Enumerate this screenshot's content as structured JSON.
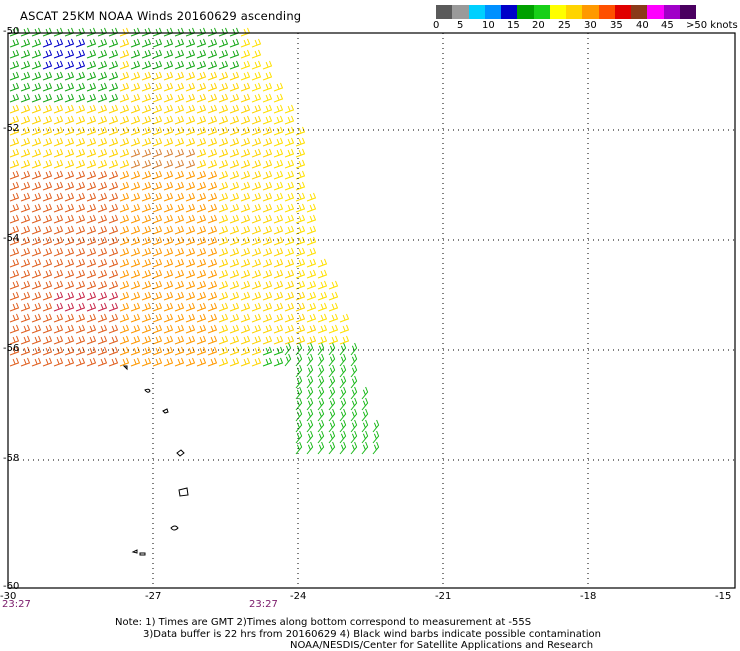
{
  "title": "ASCAT 25KM NOAA Winds 20160629 ascending",
  "colorbar": {
    "colors": [
      "#5a5a5a",
      "#9a9a9a",
      "#00d0ff",
      "#0090ff",
      "#0000c8",
      "#00a000",
      "#18d018",
      "#ffff00",
      "#ffd400",
      "#ff9900",
      "#ff5000",
      "#e00000",
      "#8a3a1a",
      "#ff00ff",
      "#a000c8",
      "#4a0060"
    ],
    "labels": [
      "0",
      "5",
      "10",
      "15",
      "20",
      "25",
      "30",
      "35",
      "40",
      "45",
      ">50 knots"
    ]
  },
  "axes": {
    "lat_labels": [
      "-50",
      "-52",
      "-54",
      "-56",
      "-58",
      "-60"
    ],
    "lon_labels": [
      "-30",
      "-27",
      "-24",
      "-21",
      "-18",
      "-15"
    ],
    "time_labels": [
      "23:27",
      "23:27"
    ]
  },
  "notes": [
    "Note: 1) Times are GMT 2)Times along bottom correspond to measurement at -55S",
    "3)Data buffer is 22 hrs from 20160629 4) Black wind barbs indicate possible contamination",
    "NOAA/NESDIS/Center for Satellite Applications and Research"
  ]
}
